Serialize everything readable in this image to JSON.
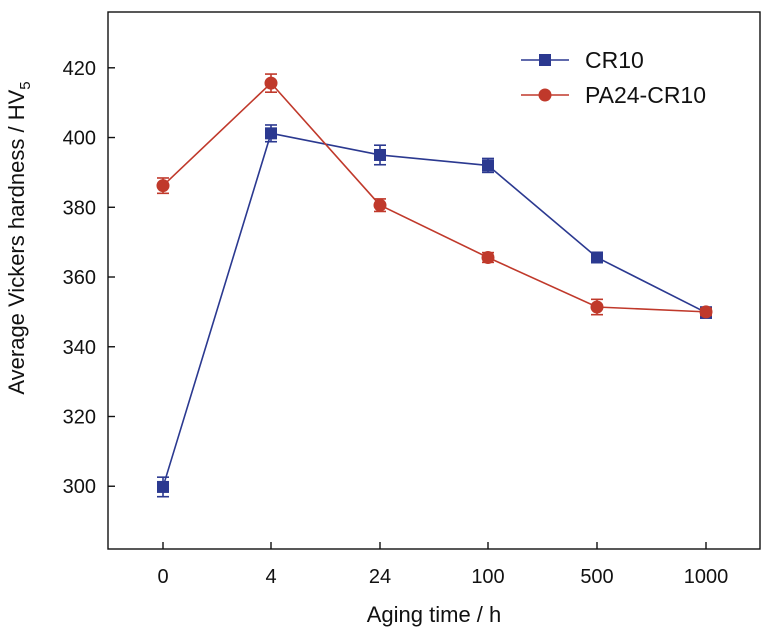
{
  "chart_data": {
    "type": "line",
    "title": "",
    "xlabel": "Aging time / h",
    "ylabel": "Average Vickers hardness / HV",
    "ylabel_subscript": "5",
    "categories": [
      "0",
      "4",
      "24",
      "100",
      "500",
      "1000"
    ],
    "ylim": [
      282,
      436
    ],
    "yticks": [
      300,
      320,
      340,
      360,
      380,
      400,
      420
    ],
    "grid": false,
    "legend_position": "top-right",
    "series": [
      {
        "name": "CR10",
        "color": "#2b3990",
        "marker": "square",
        "values": [
          299.8,
          401.2,
          395.0,
          392.0,
          365.6,
          349.8
        ],
        "errors": [
          2.8,
          2.4,
          2.8,
          2.0,
          1.4,
          1.6
        ]
      },
      {
        "name": "PA24-CR10",
        "color": "#c0392b",
        "marker": "circle",
        "values": [
          386.2,
          415.6,
          380.6,
          365.6,
          351.4,
          350.0
        ],
        "errors": [
          2.2,
          2.6,
          1.8,
          1.4,
          2.2,
          1.0
        ]
      }
    ]
  }
}
